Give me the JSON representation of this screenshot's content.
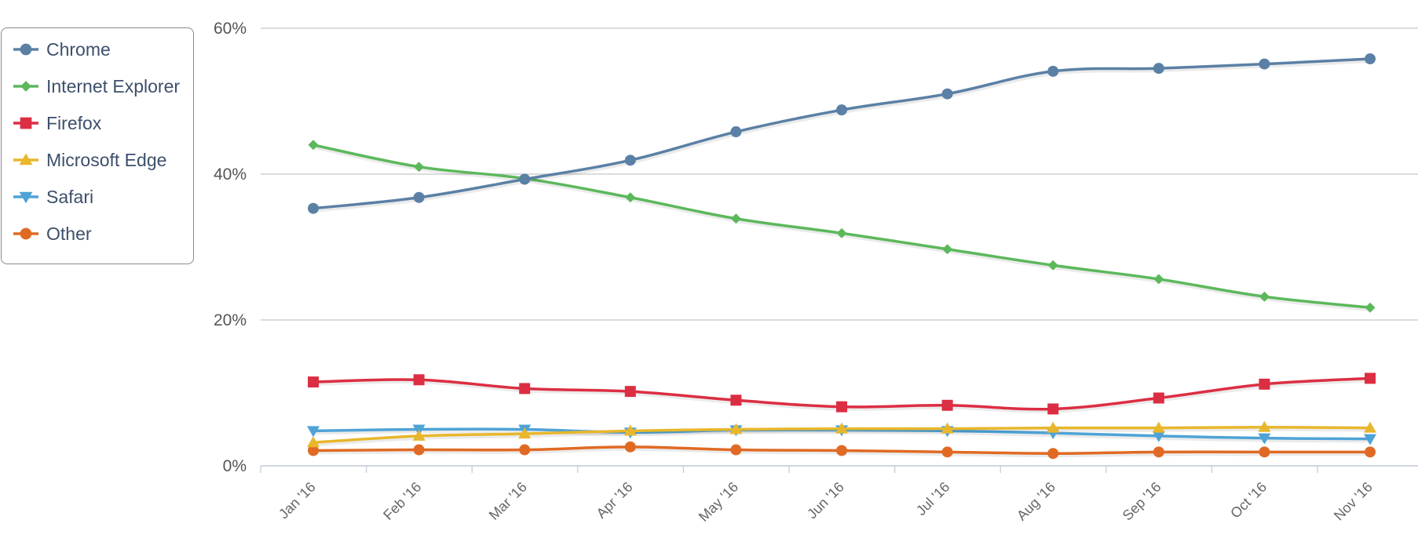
{
  "chart_data": {
    "type": "line",
    "title": "",
    "xlabel": "",
    "ylabel": "",
    "categories": [
      "Jan '16",
      "Feb '16",
      "Mar '16",
      "Apr '16",
      "May '16",
      "Jun '16",
      "Jul '16",
      "Aug '16",
      "Sep '16",
      "Oct '16",
      "Nov '16"
    ],
    "y_ticks": [
      "0%",
      "20%",
      "40%",
      "60%"
    ],
    "ylim": [
      0,
      60
    ],
    "grid": true,
    "legend_position": "top-left",
    "series": [
      {
        "name": "Chrome",
        "color": "#5b80a5",
        "marker": "circle",
        "values": [
          35.3,
          36.8,
          39.3,
          41.9,
          45.8,
          48.8,
          51.0,
          54.1,
          54.5,
          55.1,
          55.8
        ]
      },
      {
        "name": "Internet Explorer",
        "color": "#5cb85c",
        "marker": "diamond",
        "values": [
          44.0,
          41.0,
          39.4,
          36.8,
          33.9,
          31.9,
          29.7,
          27.5,
          25.6,
          23.2,
          21.7
        ]
      },
      {
        "name": "Firefox",
        "color": "#dc2e43",
        "marker": "square",
        "values": [
          11.5,
          11.8,
          10.6,
          10.2,
          9.0,
          8.1,
          8.3,
          7.8,
          9.3,
          11.2,
          12.0
        ]
      },
      {
        "name": "Microsoft Edge",
        "color": "#e8b72c",
        "marker": "triangle",
        "values": [
          3.2,
          4.1,
          4.4,
          4.8,
          5.0,
          5.1,
          5.1,
          5.2,
          5.2,
          5.3,
          5.2
        ]
      },
      {
        "name": "Safari",
        "color": "#4fa3d6",
        "marker": "triangle-down",
        "values": [
          4.8,
          5.0,
          5.0,
          4.6,
          4.9,
          4.9,
          4.8,
          4.5,
          4.1,
          3.8,
          3.7
        ]
      },
      {
        "name": "Other",
        "color": "#e06a24",
        "marker": "circle",
        "values": [
          2.1,
          2.2,
          2.2,
          2.6,
          2.2,
          2.1,
          1.9,
          1.7,
          1.9,
          1.9,
          1.9
        ]
      }
    ]
  }
}
